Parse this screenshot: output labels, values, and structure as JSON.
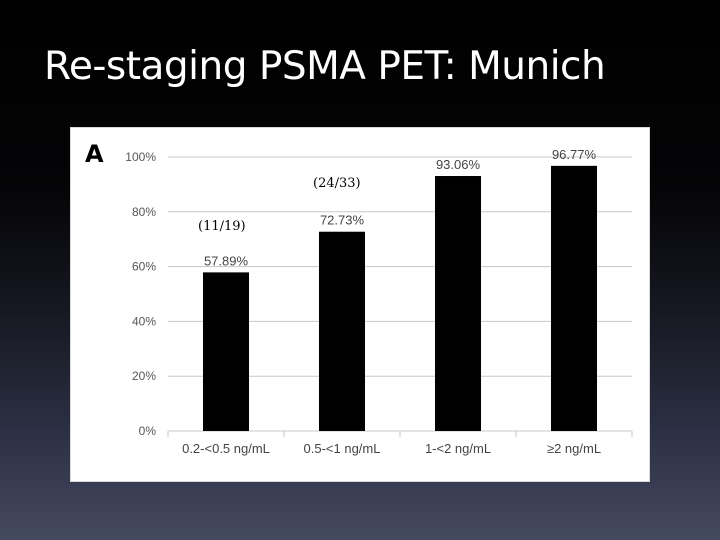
{
  "slide": {
    "title": "Re-staging PSMA PET: Munich"
  },
  "chart_data": {
    "type": "bar",
    "panel_label": "A",
    "categories": [
      "0.2-<0.5 ng/mL",
      "0.5-<1 ng/mL",
      "1-<2 ng/mL",
      "≥2 ng/mL"
    ],
    "values": [
      57.89,
      72.73,
      93.06,
      96.77
    ],
    "value_labels": [
      "57.89%",
      "72.73%",
      "93.06%",
      "96.77%"
    ],
    "bar_color": "#000000",
    "ylim": [
      0,
      100
    ],
    "yticks": [
      0,
      20,
      40,
      60,
      80,
      100
    ],
    "ytick_labels": [
      "0%",
      "20%",
      "40%",
      "60%",
      "80%",
      "100%"
    ],
    "grid": true,
    "xlabel": "",
    "ylabel": "",
    "annotations": [
      "(11/19)",
      "(24/33)"
    ]
  }
}
